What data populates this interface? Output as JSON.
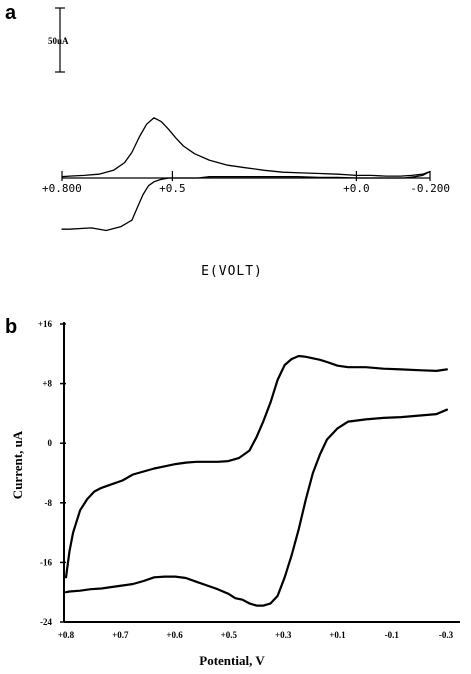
{
  "chart_data": [
    {
      "panel": "a",
      "type": "line",
      "xlabel": "E(VOLT)",
      "ylabel": "",
      "x_reversed": true,
      "xlim": [
        0.8,
        -0.2
      ],
      "ylim": [
        -45,
        45
      ],
      "x_ticks": [
        {
          "value": 0.8,
          "label": "+0.800"
        },
        {
          "value": 0.5,
          "label": "+0.5"
        },
        {
          "value": 0.0,
          "label": "+0.0"
        },
        {
          "value": -0.2,
          "label": "-0.200"
        }
      ],
      "scale_bar": {
        "label": "50uA",
        "value": 50
      },
      "series": [
        {
          "x": [
            0.8,
            0.78,
            0.72,
            0.68,
            0.64,
            0.61,
            0.595,
            0.58,
            0.565,
            0.55,
            0.53,
            0.51,
            0.49,
            0.46,
            0.43,
            0.4,
            0.36,
            0.32,
            0.28,
            0.22,
            0.16,
            0.1,
            0.05,
            0.0,
            -0.05,
            -0.1,
            -0.13,
            -0.16,
            -0.18,
            -0.2
          ],
          "y": [
            -40,
            -40,
            -39,
            -41,
            -38,
            -33,
            -23,
            -13,
            -6,
            -3,
            -1,
            0,
            0,
            0,
            0,
            1,
            1,
            1,
            1,
            1,
            1,
            0.5,
            0.5,
            0,
            0,
            0,
            0,
            1,
            2,
            5
          ]
        },
        {
          "x": [
            -0.2,
            -0.18,
            -0.15,
            -0.12,
            -0.08,
            -0.04,
            0.0,
            0.05,
            0.1,
            0.15,
            0.2,
            0.25,
            0.3,
            0.35,
            0.4,
            0.44,
            0.47,
            0.49,
            0.51,
            0.53,
            0.55,
            0.57,
            0.59,
            0.61,
            0.63,
            0.66,
            0.7,
            0.74,
            0.78,
            0.8
          ],
          "y": [
            5,
            3,
            2,
            1.5,
            1.5,
            2,
            2,
            3,
            3.5,
            4,
            4.5,
            6,
            8,
            10,
            14,
            19,
            25,
            31,
            38,
            44,
            47,
            42,
            32,
            20,
            12,
            6,
            3,
            2,
            1.5,
            1
          ]
        }
      ]
    },
    {
      "panel": "b",
      "type": "line",
      "xlabel": "Potential, V",
      "ylabel": "Current, uA",
      "x_reversed": true,
      "xlim": [
        0.8,
        -0.3
      ],
      "ylim": [
        -24,
        16
      ],
      "x_ticks": [
        "+0.8",
        "+0.7",
        "+0.6",
        "+0.5",
        "+0.3",
        "+0.1",
        "-0.1",
        "-0.3"
      ],
      "y_ticks": [
        "+16",
        "+8",
        "0",
        "-8",
        "-16",
        "-24"
      ],
      "series": [
        {
          "x": [
            0.8,
            0.79,
            0.78,
            0.77,
            0.76,
            0.74,
            0.72,
            0.7,
            0.67,
            0.64,
            0.61,
            0.58,
            0.55,
            0.52,
            0.49,
            0.46,
            0.43,
            0.4,
            0.37,
            0.34,
            0.31,
            0.28,
            0.26,
            0.24,
            0.22,
            0.2,
            0.18,
            0.16,
            0.14,
            0.12,
            0.1,
            0.08,
            0.06,
            0.03,
            0.0,
            -0.05,
            -0.1,
            -0.15,
            -0.2,
            -0.25,
            -0.28
          ],
          "y": [
            -18,
            -14.5,
            -12,
            -10.5,
            -9,
            -7.5,
            -6.5,
            -6,
            -5.5,
            -5,
            -4.2,
            -3.8,
            -3.4,
            -3.1,
            -2.8,
            -2.6,
            -2.5,
            -2.5,
            -2.5,
            -2.4,
            -2.0,
            -1.0,
            0.8,
            3,
            5.5,
            8.5,
            10.5,
            11.3,
            11.7,
            11.6,
            11.4,
            11.2,
            10.9,
            10.4,
            10.2,
            10.2,
            10.0,
            9.9,
            9.8,
            9.7,
            9.9
          ]
        },
        {
          "x": [
            -0.28,
            -0.25,
            -0.2,
            -0.15,
            -0.1,
            -0.05,
            0.0,
            0.03,
            0.06,
            0.08,
            0.1,
            0.12,
            0.14,
            0.16,
            0.18,
            0.2,
            0.22,
            0.24,
            0.26,
            0.28,
            0.3,
            0.32,
            0.34,
            0.37,
            0.4,
            0.43,
            0.46,
            0.49,
            0.52,
            0.55,
            0.58,
            0.61,
            0.64,
            0.67,
            0.7,
            0.73,
            0.76,
            0.79,
            0.8
          ],
          "y": [
            4.5,
            3.9,
            3.7,
            3.5,
            3.4,
            3.2,
            2.9,
            2.0,
            0.5,
            -1.5,
            -4,
            -7.5,
            -11.5,
            -15,
            -18,
            -20.5,
            -21.5,
            -21.8,
            -21.8,
            -21.5,
            -21,
            -20.8,
            -20.2,
            -19.6,
            -19.1,
            -18.6,
            -18.1,
            -17.9,
            -17.9,
            -18.0,
            -18.5,
            -18.9,
            -19.1,
            -19.3,
            -19.5,
            -19.6,
            -19.8,
            -19.9,
            -20.0
          ]
        }
      ]
    }
  ]
}
